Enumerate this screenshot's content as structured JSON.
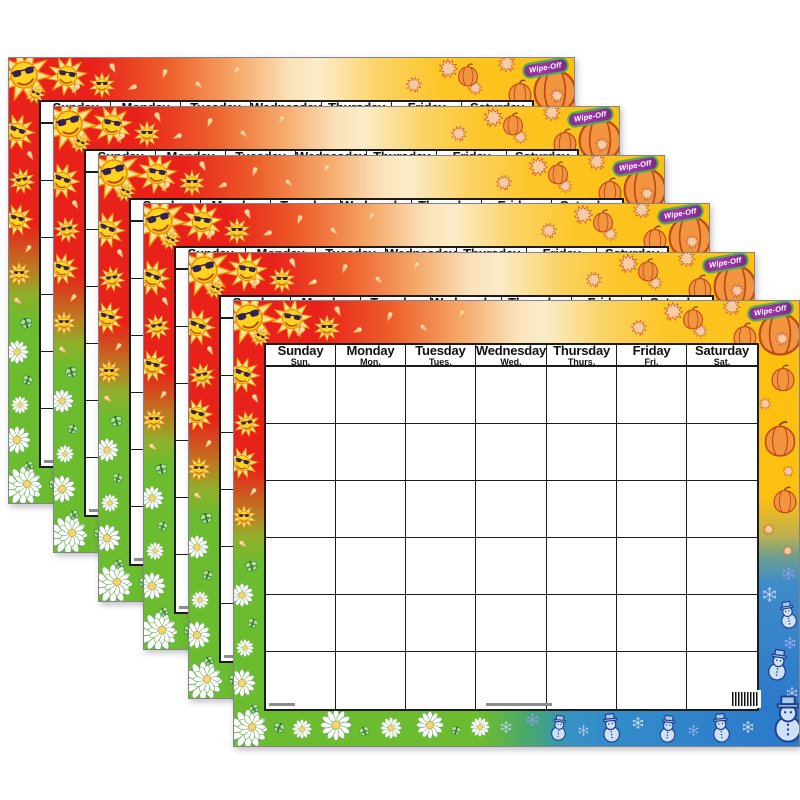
{
  "product": {
    "type": "wipe-off calendar chart",
    "badge_label": "Wipe-Off",
    "sheet_count": 6
  },
  "calendar": {
    "days": [
      {
        "name": "Sunday",
        "abbr": "Sun."
      },
      {
        "name": "Monday",
        "abbr": "Mon."
      },
      {
        "name": "Tuesday",
        "abbr": "Tues."
      },
      {
        "name": "Wednesday",
        "abbr": "Wed."
      },
      {
        "name": "Thursday",
        "abbr": "Thurs."
      },
      {
        "name": "Friday",
        "abbr": "Fri."
      },
      {
        "name": "Saturday",
        "abbr": "Sat."
      }
    ],
    "week_rows": 6,
    "columns": 7,
    "cells_blank": true
  },
  "icons": {
    "sun": "sun-with-sunglasses-icon",
    "ice": "ice-cream-cone-icon",
    "leaf": "maple-leaf-icon",
    "pump": "pumpkin-icon",
    "daisy": "daisy-icon",
    "bfly": "butterfly-icon",
    "flake": "snowflake-icon",
    "snow": "snowman-icon"
  },
  "colors": {
    "summer_red": "#e8221a",
    "autumn_gold": "#fdc010",
    "spring_green": "#6cbc2f",
    "winter_blue": "#2e7fd0",
    "pumpkin_orange": "#f2953f",
    "snowman_blue": "#cfe2f5",
    "paper": "#ffffff",
    "grid_line": "#1c1c1c",
    "badge_purple": "#8e2d94",
    "badge_green": "#49b24e"
  },
  "barcode": {
    "present": true
  }
}
